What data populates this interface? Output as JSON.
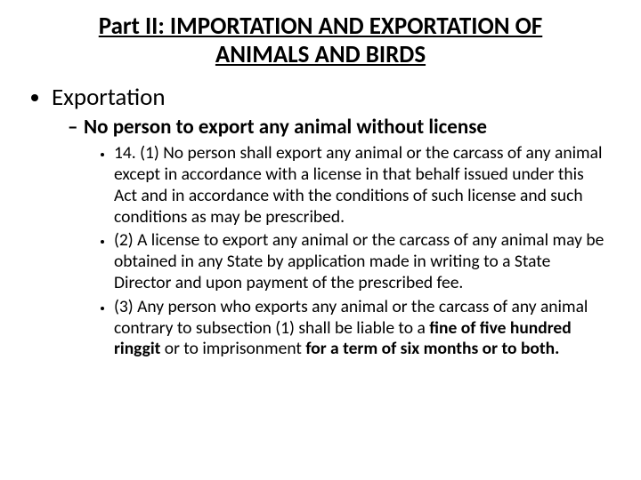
{
  "title": "Part II: IMPORTATION AND EXPORTATION OF ANIMALS AND BIRDS",
  "lvl1": {
    "item0": "Exportation"
  },
  "lvl2": {
    "item0": "No person to export any animal without license"
  },
  "lvl3": {
    "item0": "14. (1) No person shall export any animal or the carcass of any animal except in accordance with a license in that behalf issued under this Act and in accordance with the conditions of such license and such conditions as may be prescribed.",
    "item1": "(2) A license to export any animal or the carcass of any animal may be obtained in any State by application made in writing to a State Director and upon payment of the prescribed fee.",
    "item2_a": "(3) Any person who exports any animal or the carcass of any animal contrary to subsection (1) shall be liable to a ",
    "item2_b": "fine of five hundred ringgit",
    "item2_c": " or to imprisonment ",
    "item2_d": "for a term of six months or to both."
  },
  "styling": {
    "font_family": "Calibri",
    "text_color": "#000000",
    "background_color": "#ffffff",
    "title_fontsize_pt": 20,
    "title_fontweight": 700,
    "title_underline": true,
    "title_align": "center",
    "lvl1_fontsize_pt": 20,
    "lvl1_bullet": "disc",
    "lvl2_fontsize_pt": 17,
    "lvl2_fontweight": 700,
    "lvl2_bullet": "en-dash",
    "lvl3_fontsize_pt": 14.5,
    "lvl3_bullet": "disc",
    "bold_spans": [
      "fine of five hundred ringgit",
      "for a term of six months or to both."
    ]
  }
}
